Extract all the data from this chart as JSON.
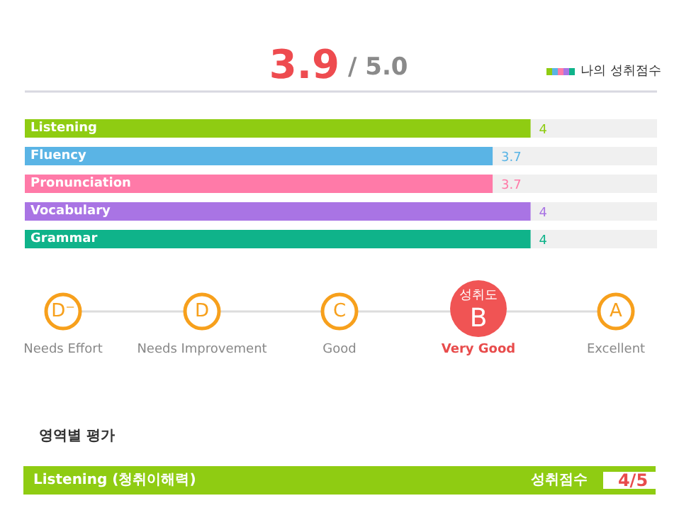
{
  "chart_data": {
    "type": "bar",
    "orientation": "horizontal",
    "title": "3.9",
    "subtitle": "/ 5.0",
    "categories": [
      "Listening",
      "Fluency",
      "Pronunciation",
      "Vocabulary",
      "Grammar"
    ],
    "series": [
      {
        "name": "나의 성취점수",
        "values": [
          4,
          3.7,
          3.7,
          4,
          4
        ]
      }
    ],
    "colors": [
      "#8fcc12",
      "#5ab4e5",
      "#ff7aa8",
      "#a974e4",
      "#0fb38a"
    ],
    "xlim": [
      0,
      5
    ],
    "data_labels": true,
    "legend": "top right",
    "tick_labels": false,
    "grid": false,
    "annotations": [
      "D⁻",
      "D",
      "C",
      "성취도",
      "B",
      "A",
      "Needs Effort",
      "Needs Improvement",
      "Good",
      "Very Good",
      "Excellent",
      "영역별 평가",
      "Listening (청취이해력)",
      "성취점수",
      "4/5"
    ]
  }
}
